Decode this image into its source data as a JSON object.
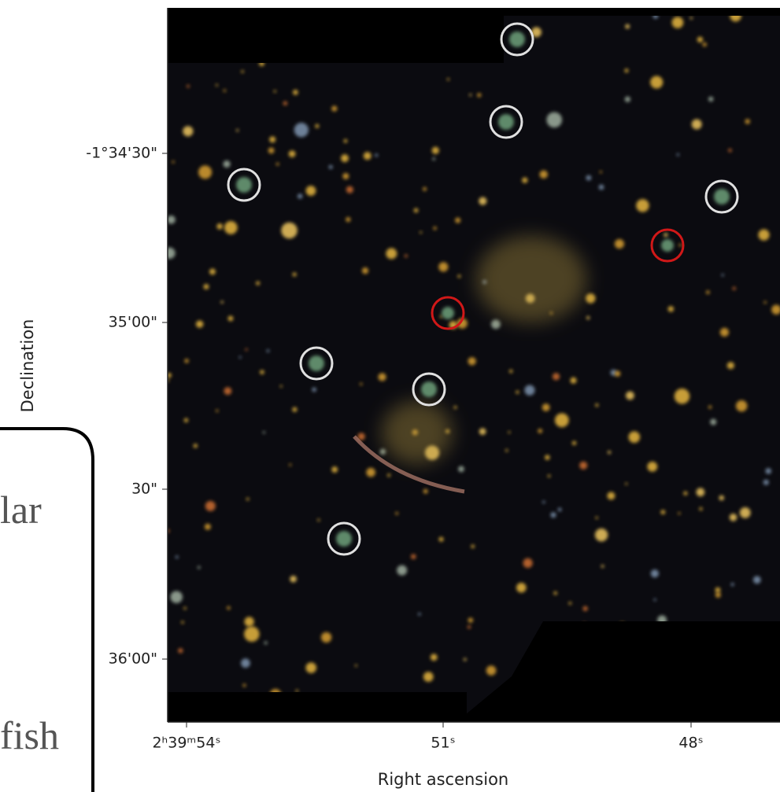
{
  "figure": {
    "x_axis": {
      "label": "Right ascension",
      "ticks": [
        "2ʰ39ᵐ54ˢ",
        "51ˢ",
        "48ˢ"
      ]
    },
    "y_axis": {
      "label": "Declination",
      "ticks": [
        "-1°34'30\"",
        "35'00\"",
        "30\"",
        "36'00\""
      ]
    }
  },
  "overlay": {
    "lines": [
      "lar",
      "fish"
    ]
  }
}
